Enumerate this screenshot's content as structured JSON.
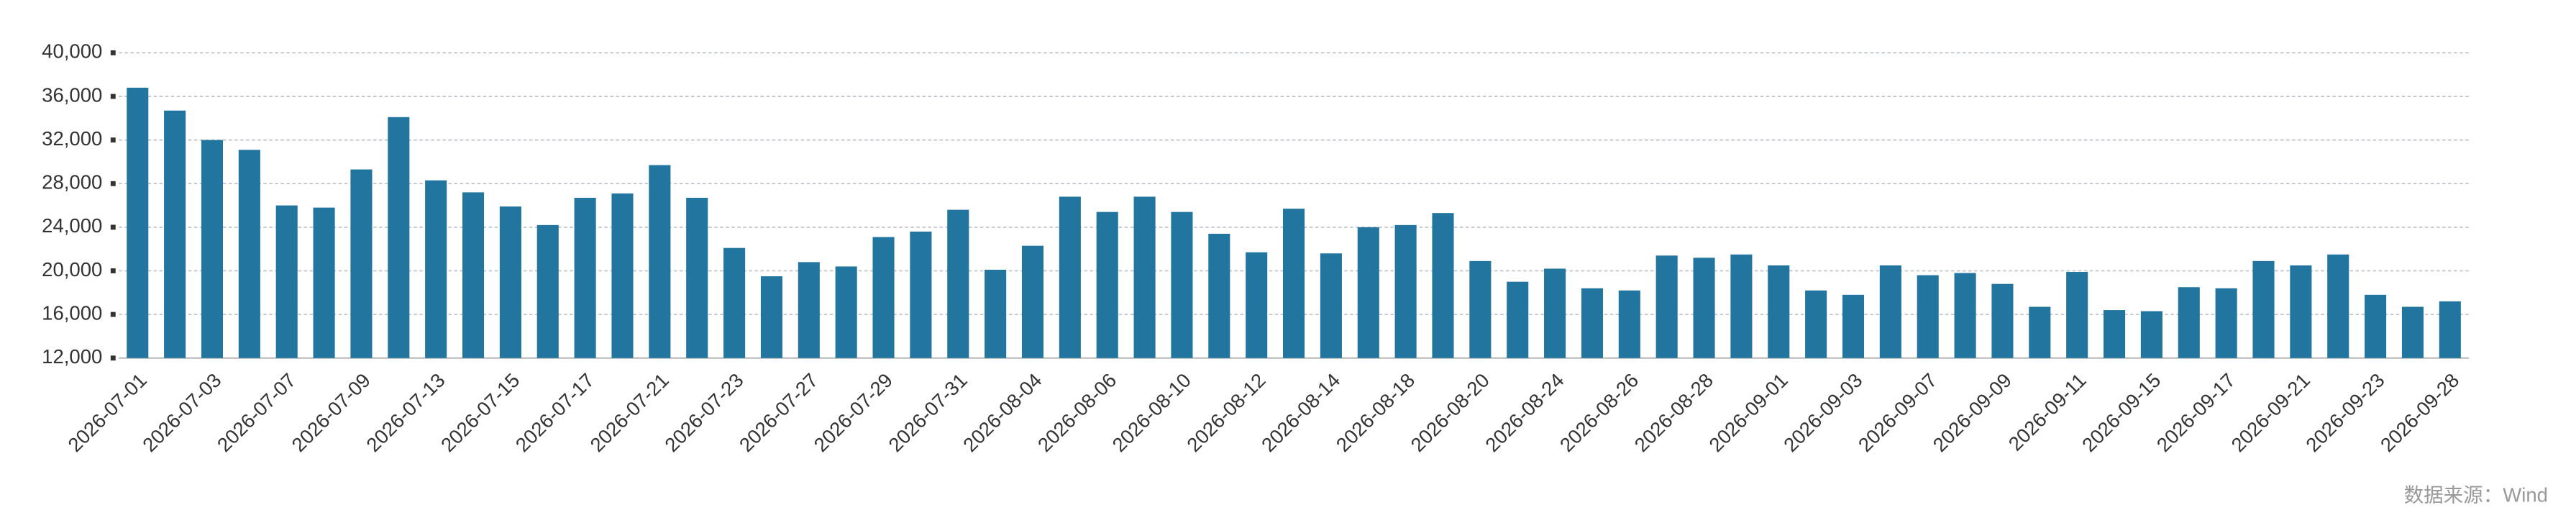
{
  "chart_data": {
    "type": "bar",
    "source": "数据来源：Wind",
    "color": "#21759f",
    "categories": [
      "2026-07-01",
      null,
      "2026-07-03",
      null,
      "2026-07-07",
      null,
      "2026-07-09",
      null,
      "2026-07-13",
      null,
      "2026-07-15",
      null,
      "2026-07-17",
      null,
      "2026-07-21",
      null,
      "2026-07-23",
      null,
      "2026-07-27",
      null,
      "2026-07-29",
      null,
      "2026-07-31",
      null,
      "2026-08-04",
      null,
      "2026-08-06",
      null,
      "2026-08-10",
      null,
      "2026-08-12",
      null,
      "2026-08-14",
      null,
      "2026-08-18",
      null,
      "2026-08-20",
      null,
      "2026-08-24",
      null,
      "2026-08-26",
      null,
      "2026-08-28",
      null,
      "2026-09-01",
      null,
      "2026-09-03",
      null,
      "2026-09-07",
      null,
      "2026-09-09",
      null,
      "2026-09-11",
      null,
      "2026-09-15",
      null,
      "2026-09-17",
      null,
      "2026-09-21",
      null,
      "2026-09-23",
      null,
      "2026-09-28"
    ],
    "values": [
      36800,
      34700,
      32000,
      31100,
      26000,
      25800,
      29300,
      34100,
      28300,
      27200,
      25900,
      24200,
      26700,
      27100,
      29700,
      26700,
      22100,
      19500,
      20800,
      20400,
      23100,
      23600,
      25600,
      20100,
      22300,
      26800,
      25400,
      26800,
      25400,
      23400,
      21700,
      25700,
      21600,
      24000,
      24200,
      25300,
      20900,
      19000,
      20200,
      18400,
      18200,
      21400,
      21200,
      21500,
      20500,
      18200,
      17800,
      20500,
      19600,
      19800,
      18800,
      16700,
      19900,
      16400,
      16300,
      18500,
      18400,
      20900,
      20500,
      21500,
      17800,
      16700,
      17200
    ],
    "ylim": [
      12000,
      40000
    ],
    "yticks": [
      {
        "value": 12000,
        "label": "12,000"
      },
      {
        "value": 16000,
        "label": "16,000"
      },
      {
        "value": 20000,
        "label": "20,000"
      },
      {
        "value": 24000,
        "label": "24,000"
      },
      {
        "value": 28000,
        "label": "28,000"
      },
      {
        "value": 32000,
        "label": "32,000"
      },
      {
        "value": 36000,
        "label": "36,000"
      },
      {
        "value": 40000,
        "label": "40,000"
      }
    ],
    "grid": true
  }
}
